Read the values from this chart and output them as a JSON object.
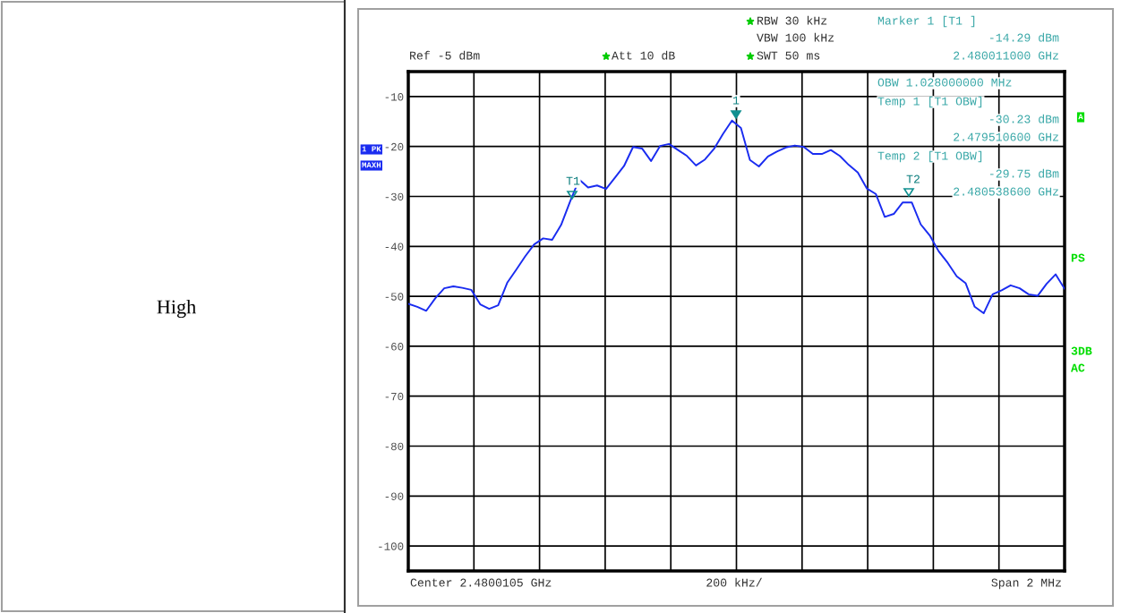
{
  "chart_data": {
    "type": "line",
    "categories": [
      null,
      null,
      null,
      null,
      null,
      null,
      null,
      null,
      null,
      null,
      null,
      null,
      null,
      null,
      null,
      null,
      null,
      null,
      null,
      null,
      null,
      null,
      null,
      null,
      null,
      null,
      null,
      null,
      null,
      null,
      null,
      null,
      null,
      null,
      null,
      null,
      null,
      null,
      null,
      null,
      null,
      null,
      null,
      null,
      null,
      null,
      null,
      null,
      null,
      null,
      null,
      null,
      null,
      null,
      null,
      null,
      null,
      null,
      null,
      null,
      null,
      null,
      null,
      null,
      null,
      null,
      null,
      null,
      null,
      null,
      null,
      null,
      null,
      null
    ],
    "series": [
      {
        "color": "#1a2cf0",
        "values": [
          -51.5,
          -52.1,
          -52.9,
          -50.4,
          -48.4,
          -48.0,
          -48.3,
          -48.7,
          -51.6,
          -52.5,
          -51.8,
          -47.3,
          -44.7,
          -42.0,
          -39.6,
          -38.4,
          -38.7,
          -35.7,
          -31.0,
          -26.6,
          -28.2,
          -27.8,
          -28.5,
          -26.2,
          -23.9,
          -20.1,
          -20.4,
          -22.9,
          -19.9,
          -19.5,
          -20.7,
          -21.9,
          -23.8,
          -22.6,
          -20.5,
          -17.5,
          -14.8,
          -16.3,
          -22.7,
          -24.0,
          -22.0,
          -21.0,
          -20.2,
          -19.8,
          -20.1,
          -21.5,
          -21.5,
          -20.7,
          -21.9,
          -23.7,
          -25.2,
          -28.4,
          -29.5,
          -34.1,
          -33.5,
          -31.2,
          -31.2,
          -35.6,
          -37.8,
          -41.0,
          -43.3,
          -46.0,
          -47.4,
          -52.1,
          -53.4,
          -49.6,
          -48.8,
          -47.8,
          -48.4,
          -49.6,
          -49.9,
          -47.5,
          -45.6,
          -48.5
        ]
      }
    ],
    "ylim": [
      -105,
      -5
    ],
    "yticks": [
      -10,
      -20,
      -30,
      -40,
      -50,
      -60,
      -70,
      -80,
      -90,
      -100
    ],
    "grid": true,
    "line_style": "solid",
    "annotations": [
      "Ref -5 dBm",
      "Att 10 dB",
      "RBW 30 kHz",
      "VBW 100 kHz",
      "SWT 50 ms",
      "Marker 1 [T1 ]",
      "-14.29 dBm",
      "2.480011000 GHz",
      "OBW 1.028000000 MHz",
      "Temp 1 [T1 OBW]",
      "-30.23 dBm",
      "2.479510600 GHz",
      "Temp 2 [T1 OBW]",
      "-29.75 dBm",
      "2.480538600 GHz",
      "Center 2.4800105 GHz",
      "200 kHz/",
      "Span 2 MHz",
      "1 PK",
      "MAXH",
      "A",
      "PS",
      "3DB",
      "AC",
      "High",
      "1",
      "T1",
      "T2"
    ]
  }
}
